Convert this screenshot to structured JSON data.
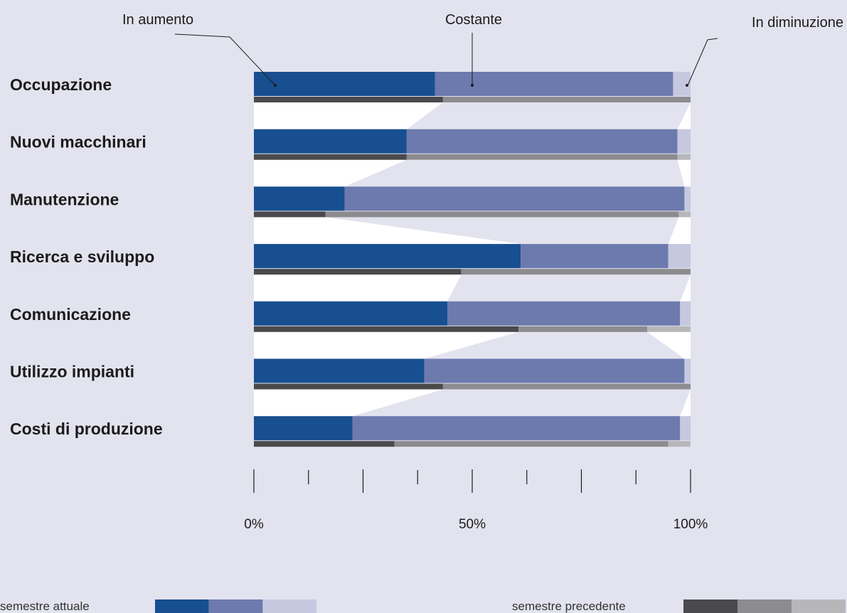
{
  "chart_data": {
    "type": "bar",
    "stacked": true,
    "orientation": "horizontal",
    "categories": [
      "Occupazione",
      "Nuovi macchinari",
      "Manutenzione",
      "Ricerca e sviluppo",
      "Comunicazione",
      "Utilizzo impianti",
      "Costi di produzione"
    ],
    "series_labels": [
      "In aumento",
      "Costante",
      "In diminuzione"
    ],
    "current": {
      "name": "semestre attuale",
      "colors": [
        "#174f90",
        "#6d7aae",
        "#c6c8e0"
      ],
      "values": [
        [
          41.5,
          54.5,
          4.0
        ],
        [
          35.0,
          62.0,
          3.0
        ],
        [
          20.8,
          77.8,
          1.4
        ],
        [
          61.1,
          33.8,
          5.1
        ],
        [
          44.3,
          53.3,
          2.4
        ],
        [
          39.0,
          59.6,
          1.4
        ],
        [
          22.6,
          75.0,
          2.4
        ]
      ]
    },
    "previous": {
      "name": "semestre precedente",
      "colors": [
        "#4a4a4c",
        "#8c8c8f",
        "#b7b7ba"
      ],
      "values": [
        [
          43.3,
          56.7,
          0.0
        ],
        [
          35.0,
          62.0,
          3.0
        ],
        [
          16.4,
          80.9,
          2.7
        ],
        [
          47.5,
          52.5,
          0.0
        ],
        [
          60.6,
          29.5,
          9.9
        ],
        [
          43.3,
          56.7,
          0.0
        ],
        [
          32.2,
          62.7,
          5.1
        ]
      ]
    },
    "xlim": [
      0,
      100
    ],
    "xticks": [
      0,
      12.5,
      25,
      37.5,
      50,
      62.5,
      75,
      87.5,
      100
    ],
    "xtick_labels": [
      {
        "value": 0,
        "label": "0%"
      },
      {
        "value": 50,
        "label": "50%"
      },
      {
        "value": 100,
        "label": "100%"
      }
    ],
    "legend": [
      "semestre attuale",
      "semestre precedente"
    ]
  }
}
